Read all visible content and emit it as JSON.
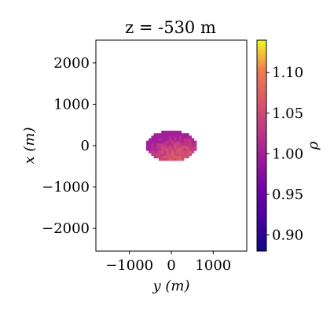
{
  "chart_data": {
    "type": "heatmap",
    "title": "z = -530 m",
    "xlabel": "y (m)",
    "ylabel": "x (m)",
    "xlim": [
      -1800,
      1800
    ],
    "ylim": [
      -2550,
      2550
    ],
    "x_ticks": [
      -1000,
      0,
      1000
    ],
    "y_ticks": [
      2000,
      1000,
      0,
      -1000,
      -2000
    ],
    "x_tick_labels": [
      "−1000",
      "0",
      "1000"
    ],
    "y_tick_labels": [
      "2000",
      "1000",
      "0",
      "−1000",
      "−2000"
    ],
    "grid": false,
    "colormap": "plasma",
    "colorbar": {
      "label": "ρ",
      "range": [
        0.88,
        1.14
      ],
      "ticks": [
        0.9,
        0.95,
        1.0,
        1.05,
        1.1
      ],
      "tick_labels": [
        "0.90",
        "0.95",
        "1.00",
        "1.05",
        "1.10"
      ]
    },
    "data_region": {
      "description_values": "elliptical density anomaly centered near x=0 m, y=0 m",
      "center_y": 0,
      "center_x": -10,
      "radius_y": 600,
      "radius_x": 370,
      "value_range": [
        1.0,
        1.14
      ]
    }
  }
}
